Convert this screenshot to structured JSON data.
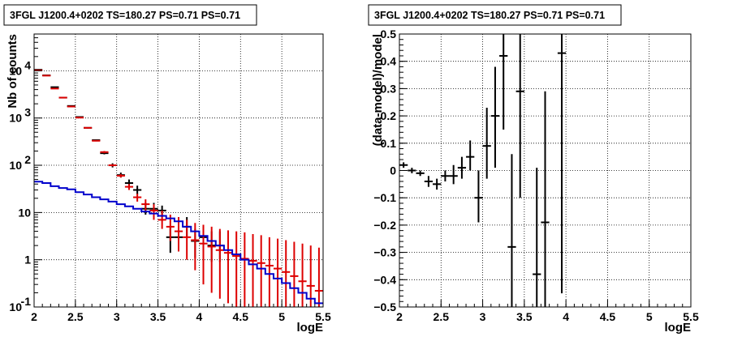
{
  "chart_data": [
    {
      "type": "scatter",
      "title": "3FGL J1200.4+0202 TS=180.27 PS=0.71 PS=0.71",
      "xlabel": "logE",
      "ylabel": "Nb of counts",
      "yscale": "log",
      "xlim": [
        2,
        5.5
      ],
      "ylim": [
        0.1,
        60000
      ],
      "grid": true,
      "x_ticks": [
        "2",
        "2.5",
        "3",
        "3.5",
        "4",
        "4.5",
        "5",
        "5.5"
      ],
      "y_ticks": [
        {
          "value": 0.1,
          "label": "10",
          "sup": "-1"
        },
        {
          "value": 1,
          "label": "1",
          "sup": ""
        },
        {
          "value": 10,
          "label": "10",
          "sup": ""
        },
        {
          "value": 100,
          "label": "10",
          "sup": "2"
        },
        {
          "value": 1000,
          "label": "10",
          "sup": "3"
        },
        {
          "value": 10000,
          "label": "10",
          "sup": "4"
        }
      ],
      "series": [
        {
          "kind": "points",
          "color": "#000000",
          "x": [
            2.05,
            2.15,
            2.25,
            2.35,
            2.45,
            2.55,
            2.65,
            2.75,
            2.85,
            2.95,
            3.05,
            3.15,
            3.25,
            3.35,
            3.45,
            3.55,
            3.65,
            3.75,
            3.85,
            3.95,
            4.05,
            4.15,
            4.25
          ],
          "y": [
            10500,
            8000,
            4500,
            2700,
            1800,
            1050,
            620,
            340,
            180,
            100,
            62,
            42,
            30,
            12,
            12,
            11,
            3,
            3,
            5,
            2.5,
            3,
            2,
            2
          ],
          "y_low": [
            10400,
            7900,
            4450,
            2650,
            1760,
            1020,
            600,
            330,
            170,
            90,
            55,
            35,
            24,
            9,
            9,
            8,
            1.4,
            1.5,
            3,
            1.1,
            1.5,
            0.9,
            0.9
          ],
          "y_high": [
            10600,
            8100,
            4550,
            2750,
            1840,
            1080,
            640,
            350,
            190,
            110,
            70,
            50,
            37,
            16,
            16,
            14,
            5,
            5,
            8,
            4.5,
            5,
            4,
            4
          ]
        },
        {
          "kind": "points",
          "color": "#dd0000",
          "x": [
            2.05,
            2.15,
            2.25,
            2.35,
            2.45,
            2.55,
            2.65,
            2.75,
            2.85,
            2.95,
            3.05,
            3.15,
            3.25,
            3.35,
            3.45,
            3.55,
            3.65,
            3.75,
            3.85,
            3.95,
            4.05,
            4.15,
            4.25,
            4.35,
            4.45,
            4.55,
            4.65,
            4.75,
            4.85,
            4.95,
            5.05,
            5.15,
            5.25,
            5.35,
            5.45
          ],
          "y": [
            10200,
            7900,
            4200,
            2700,
            1750,
            1020,
            620,
            330,
            190,
            100,
            60,
            35,
            21,
            15,
            11,
            7,
            5,
            4,
            3,
            2.6,
            2.2,
            1.9,
            1.6,
            1.4,
            1.2,
            1.05,
            0.95,
            0.85,
            0.75,
            0.65,
            0.55,
            0.45,
            0.35,
            0.28,
            0.22
          ],
          "y_low": [
            10100,
            7800,
            4150,
            2650,
            1720,
            1000,
            600,
            320,
            180,
            95,
            55,
            30,
            17,
            11,
            7,
            4.5,
            2.5,
            1.5,
            1,
            0.6,
            0.3,
            0.2,
            0.15,
            0.12,
            0.1,
            0.1,
            0.1,
            0.1,
            0.1,
            0.1,
            0.1,
            0.1,
            0.1,
            0.1,
            0.1
          ],
          "y_high": [
            10300,
            8000,
            4250,
            2750,
            1780,
            1040,
            640,
            340,
            200,
            105,
            65,
            40,
            25,
            19,
            15,
            11,
            9,
            8,
            7,
            6,
            5.5,
            5,
            4.5,
            4.2,
            4,
            3.8,
            3.5,
            3.3,
            3,
            2.8,
            2.6,
            2.4,
            2.2,
            2,
            1.8
          ]
        },
        {
          "kind": "step",
          "color": "#0000cc",
          "x_edges": [
            2.0,
            2.1,
            2.2,
            2.3,
            2.4,
            2.5,
            2.6,
            2.7,
            2.8,
            2.9,
            3.0,
            3.1,
            3.2,
            3.3,
            3.4,
            3.5,
            3.6,
            3.7,
            3.8,
            3.9,
            4.0,
            4.1,
            4.2,
            4.3,
            4.4,
            4.5,
            4.6,
            4.7,
            4.8,
            4.9,
            5.0,
            5.1,
            5.2,
            5.3,
            5.4,
            5.5
          ],
          "y": [
            45,
            42,
            36,
            33,
            31,
            27,
            24,
            21,
            19,
            17,
            15,
            13.5,
            12,
            10.5,
            9.5,
            8.5,
            7.5,
            6.5,
            5,
            4,
            3.2,
            2.5,
            2,
            1.6,
            1.3,
            1.0,
            0.8,
            0.65,
            0.5,
            0.4,
            0.32,
            0.25,
            0.2,
            0.15,
            0.12
          ]
        }
      ]
    },
    {
      "type": "scatter",
      "title": "3FGL J1200.4+0202 TS=180.27 PS=0.71 PS=0.71",
      "xlabel": "logE",
      "ylabel": "(data-model)/model",
      "yscale": "linear",
      "xlim": [
        2,
        5.5
      ],
      "ylim": [
        -0.5,
        0.5
      ],
      "grid": true,
      "x_ticks": [
        "2",
        "2.5",
        "3",
        "3.5",
        "4",
        "4.5",
        "5",
        "5.5"
      ],
      "y_ticks": [
        "−0.5",
        "−0.4",
        "−0.3",
        "−0.2",
        "−0.1",
        "0",
        "0.1",
        "0.2",
        "0.3",
        "0.4",
        "0.5"
      ],
      "series": [
        {
          "kind": "points",
          "color": "#000000",
          "x": [
            2.05,
            2.15,
            2.25,
            2.35,
            2.45,
            2.55,
            2.65,
            2.75,
            2.85,
            2.95,
            3.05,
            3.15,
            3.25,
            3.35,
            3.45,
            3.65,
            3.75,
            3.95
          ],
          "y": [
            0.02,
            0.0,
            -0.01,
            -0.04,
            -0.05,
            -0.02,
            -0.02,
            0.01,
            0.05,
            -0.1,
            0.09,
            0.2,
            0.42,
            -0.28,
            0.29,
            -0.38,
            -0.19,
            0.43
          ],
          "y_low": [
            0.01,
            -0.01,
            -0.02,
            -0.06,
            -0.07,
            -0.04,
            -0.05,
            -0.03,
            0.0,
            -0.19,
            -0.03,
            0.01,
            0.15,
            -0.62,
            -0.1,
            -0.78,
            -0.63,
            -0.45
          ],
          "y_high": [
            0.03,
            0.01,
            0.0,
            -0.02,
            -0.03,
            0.0,
            0.02,
            0.05,
            0.11,
            0.0,
            0.23,
            0.38,
            0.7,
            0.06,
            0.68,
            0.01,
            0.29,
            1.3
          ]
        }
      ]
    }
  ]
}
